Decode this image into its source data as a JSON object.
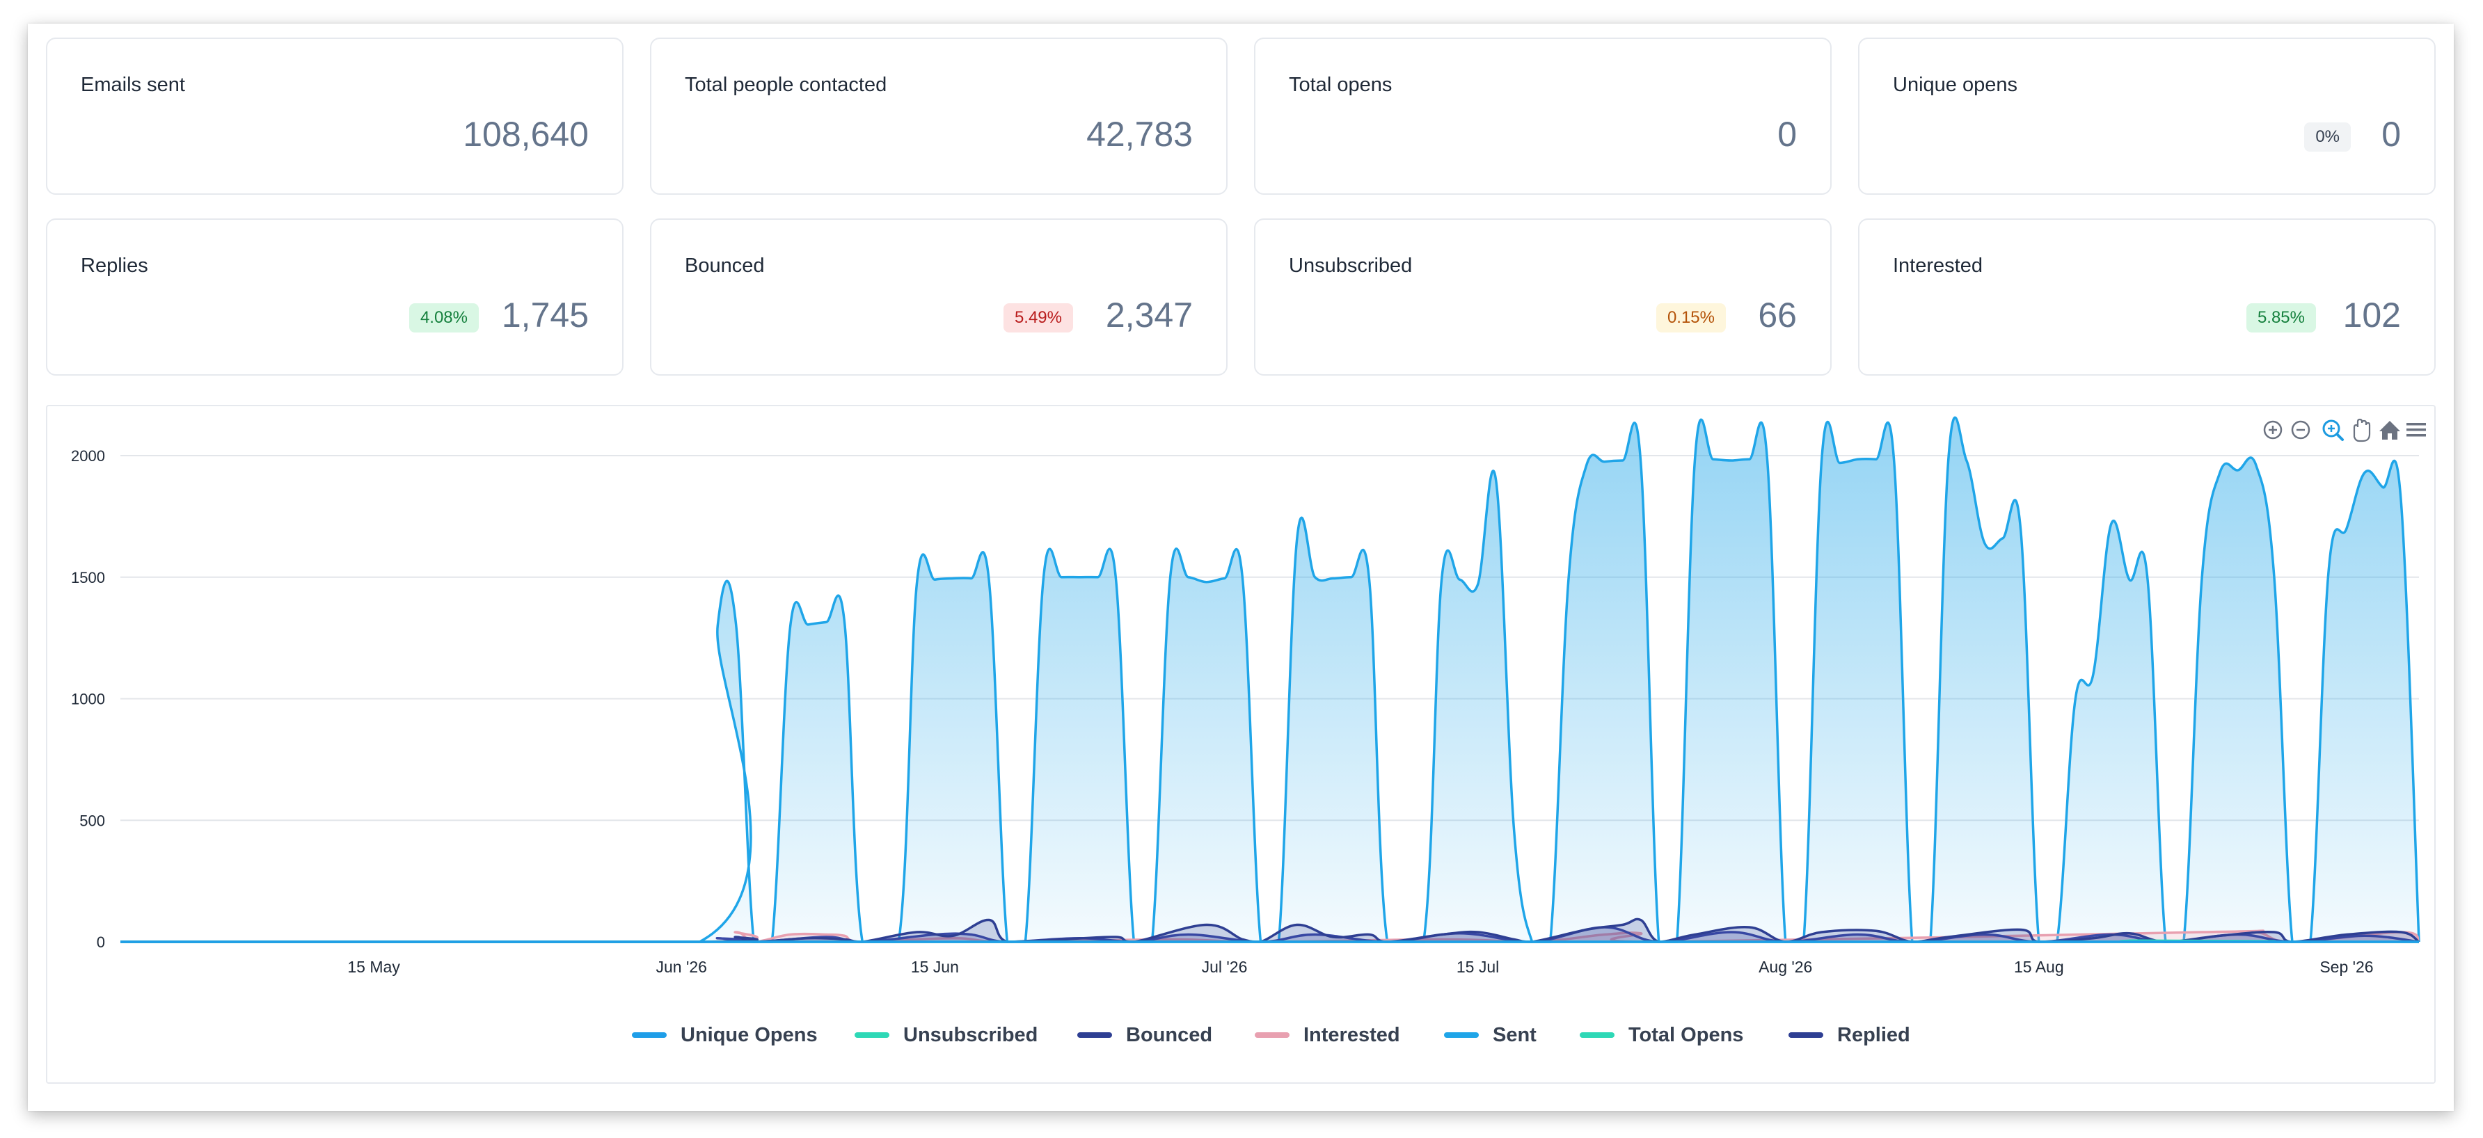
{
  "stats": [
    {
      "title": "Emails sent",
      "value": "108,640",
      "badge": null
    },
    {
      "title": "Total people contacted",
      "value": "42,783",
      "badge": null
    },
    {
      "title": "Total opens",
      "value": "0",
      "badge": null
    },
    {
      "title": "Unique opens",
      "value": "0",
      "badge": {
        "text": "0%",
        "bg": "#f1f3f5",
        "fg": "#374151"
      }
    },
    {
      "title": "Replies",
      "value": "1,745",
      "badge": {
        "text": "4.08%",
        "bg": "#d9f7e4",
        "fg": "#15803d"
      }
    },
    {
      "title": "Bounced",
      "value": "2,347",
      "badge": {
        "text": "5.49%",
        "bg": "#fde2e2",
        "fg": "#b91c1c"
      }
    },
    {
      "title": "Unsubscribed",
      "value": "66",
      "badge": {
        "text": "0.15%",
        "bg": "#fef6dc",
        "fg": "#b45309"
      }
    },
    {
      "title": "Interested",
      "value": "102",
      "badge": {
        "text": "5.85%",
        "bg": "#d9f7e4",
        "fg": "#15803d"
      }
    }
  ],
  "toolbar": {
    "icons": [
      "zoom-in-icon",
      "zoom-out-icon",
      "zoom-selection-icon",
      "pan-icon",
      "home-icon",
      "menu-icon"
    ]
  },
  "legend": [
    {
      "name": "Unique Opens",
      "color": "#1f9ee8"
    },
    {
      "name": "Unsubscribed",
      "color": "#2ed8b6"
    },
    {
      "name": "Bounced",
      "color": "#2e3f93"
    },
    {
      "name": "Interested",
      "color": "#e8a0b0"
    },
    {
      "name": "Sent",
      "color": "#1fa5e8"
    },
    {
      "name": "Total Opens",
      "color": "#2ed8b6"
    },
    {
      "name": "Replied",
      "color": "#2e3f93"
    }
  ],
  "chart_data": {
    "type": "area",
    "title": "",
    "xlabel": "",
    "ylabel": "",
    "ylim": [
      0,
      2000
    ],
    "y_ticks": [
      0,
      500,
      1000,
      1500,
      2000
    ],
    "xlim": [
      "2026-05-01",
      "2026-09-05"
    ],
    "x_ticks": [
      {
        "label": "15 May",
        "date": "2026-05-15"
      },
      {
        "label": "Jun '26",
        "date": "2026-06-01"
      },
      {
        "label": "15 Jun",
        "date": "2026-06-15"
      },
      {
        "label": "Jul '26",
        "date": "2026-07-01"
      },
      {
        "label": "15 Jul",
        "date": "2026-07-15"
      },
      {
        "label": "Aug '26",
        "date": "2026-08-01"
      },
      {
        "label": "15 Aug",
        "date": "2026-08-15"
      },
      {
        "label": "Sep '26",
        "date": "2026-09-01"
      }
    ],
    "grid": true,
    "legend_position": "bottom",
    "series": [
      {
        "name": "Sent",
        "color": "#1fa5e8",
        "points": [
          [
            "2026-05-01",
            0
          ],
          [
            "2026-06-02",
            0
          ],
          [
            "2026-06-03",
            1300
          ],
          [
            "2026-06-04",
            1315
          ],
          [
            "2026-06-05",
            0
          ],
          [
            "2026-06-06",
            0
          ],
          [
            "2026-06-07",
            1290
          ],
          [
            "2026-06-08",
            1305
          ],
          [
            "2026-06-09",
            1315
          ],
          [
            "2026-06-10",
            1320
          ],
          [
            "2026-06-11",
            0
          ],
          [
            "2026-06-13",
            0
          ],
          [
            "2026-06-14",
            1470
          ],
          [
            "2026-06-15",
            1490
          ],
          [
            "2026-06-16",
            1495
          ],
          [
            "2026-06-17",
            1495
          ],
          [
            "2026-06-18",
            1480
          ],
          [
            "2026-06-19",
            0
          ],
          [
            "2026-06-20",
            0
          ],
          [
            "2026-06-21",
            1495
          ],
          [
            "2026-06-22",
            1500
          ],
          [
            "2026-06-23",
            1500
          ],
          [
            "2026-06-24",
            1500
          ],
          [
            "2026-06-25",
            1495
          ],
          [
            "2026-06-26",
            0
          ],
          [
            "2026-06-27",
            0
          ],
          [
            "2026-06-28",
            1495
          ],
          [
            "2026-06-29",
            1500
          ],
          [
            "2026-06-30",
            1480
          ],
          [
            "2026-07-01",
            1495
          ],
          [
            "2026-07-02",
            1495
          ],
          [
            "2026-07-03",
            0
          ],
          [
            "2026-07-04",
            0
          ],
          [
            "2026-07-05",
            1650
          ],
          [
            "2026-07-06",
            1500
          ],
          [
            "2026-07-07",
            1495
          ],
          [
            "2026-07-08",
            1500
          ],
          [
            "2026-07-09",
            1490
          ],
          [
            "2026-07-10",
            0
          ],
          [
            "2026-07-12",
            0
          ],
          [
            "2026-07-13",
            1490
          ],
          [
            "2026-07-14",
            1490
          ],
          [
            "2026-07-15",
            1470
          ],
          [
            "2026-07-16",
            1900
          ],
          [
            "2026-07-17",
            460
          ],
          [
            "2026-07-18",
            0
          ],
          [
            "2026-07-19",
            0
          ],
          [
            "2026-07-20",
            1480
          ],
          [
            "2026-07-21",
            1960
          ],
          [
            "2026-07-22",
            1975
          ],
          [
            "2026-07-23",
            1980
          ],
          [
            "2026-07-24",
            1975
          ],
          [
            "2026-07-25",
            0
          ],
          [
            "2026-07-26",
            0
          ],
          [
            "2026-07-27",
            1990
          ],
          [
            "2026-07-28",
            1985
          ],
          [
            "2026-07-29",
            1980
          ],
          [
            "2026-07-30",
            1985
          ],
          [
            "2026-07-31",
            1975
          ],
          [
            "2026-08-01",
            0
          ],
          [
            "2026-08-02",
            0
          ],
          [
            "2026-08-03",
            1985
          ],
          [
            "2026-08-04",
            1970
          ],
          [
            "2026-08-05",
            1985
          ],
          [
            "2026-08-06",
            1985
          ],
          [
            "2026-08-07",
            1975
          ],
          [
            "2026-08-08",
            0
          ],
          [
            "2026-08-09",
            0
          ],
          [
            "2026-08-10",
            1985
          ],
          [
            "2026-08-11",
            1980
          ],
          [
            "2026-08-12",
            1640
          ],
          [
            "2026-08-13",
            1660
          ],
          [
            "2026-08-14",
            1690
          ],
          [
            "2026-08-15",
            0
          ],
          [
            "2026-08-16",
            0
          ],
          [
            "2026-08-17",
            990
          ],
          [
            "2026-08-18",
            1100
          ],
          [
            "2026-08-19",
            1720
          ],
          [
            "2026-08-20",
            1490
          ],
          [
            "2026-08-21",
            1495
          ],
          [
            "2026-08-22",
            0
          ],
          [
            "2026-08-23",
            0
          ],
          [
            "2026-08-24",
            1490
          ],
          [
            "2026-08-25",
            1930
          ],
          [
            "2026-08-26",
            1940
          ],
          [
            "2026-08-27",
            1960
          ],
          [
            "2026-08-28",
            1500
          ],
          [
            "2026-08-29",
            0
          ],
          [
            "2026-08-30",
            0
          ],
          [
            "2026-08-31",
            1520
          ],
          [
            "2026-09-01",
            1700
          ],
          [
            "2026-09-02",
            1930
          ],
          [
            "2026-09-03",
            1870
          ],
          [
            "2026-09-04",
            1820
          ],
          [
            "2026-09-05",
            0
          ]
        ]
      },
      {
        "name": "Replied",
        "color": "#2e3f93",
        "points": [
          [
            "2026-05-01",
            0
          ],
          [
            "2026-06-02",
            0
          ],
          [
            "2026-06-04",
            20
          ],
          [
            "2026-06-05",
            0
          ],
          [
            "2026-06-08",
            15
          ],
          [
            "2026-06-10",
            10
          ],
          [
            "2026-06-11",
            0
          ],
          [
            "2026-06-14",
            40
          ],
          [
            "2026-06-16",
            25
          ],
          [
            "2026-06-18",
            90
          ],
          [
            "2026-06-19",
            0
          ],
          [
            "2026-06-22",
            10
          ],
          [
            "2026-06-25",
            20
          ],
          [
            "2026-06-26",
            0
          ],
          [
            "2026-06-30",
            70
          ],
          [
            "2026-07-02",
            10
          ],
          [
            "2026-07-03",
            0
          ],
          [
            "2026-07-05",
            70
          ],
          [
            "2026-07-07",
            20
          ],
          [
            "2026-07-09",
            30
          ],
          [
            "2026-07-10",
            0
          ],
          [
            "2026-07-13",
            30
          ],
          [
            "2026-07-15",
            40
          ],
          [
            "2026-07-17",
            10
          ],
          [
            "2026-07-18",
            0
          ],
          [
            "2026-07-21",
            50
          ],
          [
            "2026-07-23",
            70
          ],
          [
            "2026-07-24",
            90
          ],
          [
            "2026-07-25",
            0
          ],
          [
            "2026-07-27",
            30
          ],
          [
            "2026-07-30",
            60
          ],
          [
            "2026-08-01",
            0
          ],
          [
            "2026-08-03",
            40
          ],
          [
            "2026-08-06",
            45
          ],
          [
            "2026-08-08",
            0
          ],
          [
            "2026-08-10",
            20
          ],
          [
            "2026-08-14",
            50
          ],
          [
            "2026-08-15",
            0
          ],
          [
            "2026-08-18",
            15
          ],
          [
            "2026-08-20",
            35
          ],
          [
            "2026-08-22",
            0
          ],
          [
            "2026-08-25",
            25
          ],
          [
            "2026-08-28",
            40
          ],
          [
            "2026-08-29",
            0
          ],
          [
            "2026-09-01",
            30
          ],
          [
            "2026-09-04",
            40
          ],
          [
            "2026-09-05",
            0
          ]
        ]
      },
      {
        "name": "Bounced",
        "color": "#3a4aa8",
        "points": [
          [
            "2026-05-01",
            0
          ],
          [
            "2026-06-02",
            0
          ],
          [
            "2026-06-03",
            15
          ],
          [
            "2026-06-05",
            0
          ],
          [
            "2026-06-09",
            20
          ],
          [
            "2026-06-11",
            0
          ],
          [
            "2026-06-15",
            30
          ],
          [
            "2026-06-17",
            30
          ],
          [
            "2026-06-19",
            0
          ],
          [
            "2026-06-23",
            15
          ],
          [
            "2026-06-26",
            0
          ],
          [
            "2026-06-29",
            30
          ],
          [
            "2026-07-03",
            0
          ],
          [
            "2026-07-06",
            30
          ],
          [
            "2026-07-10",
            0
          ],
          [
            "2026-07-14",
            35
          ],
          [
            "2026-07-18",
            0
          ],
          [
            "2026-07-22",
            60
          ],
          [
            "2026-07-25",
            0
          ],
          [
            "2026-07-29",
            40
          ],
          [
            "2026-08-01",
            0
          ],
          [
            "2026-08-05",
            30
          ],
          [
            "2026-08-08",
            0
          ],
          [
            "2026-08-12",
            30
          ],
          [
            "2026-08-15",
            0
          ],
          [
            "2026-08-19",
            30
          ],
          [
            "2026-08-22",
            0
          ],
          [
            "2026-08-26",
            30
          ],
          [
            "2026-08-29",
            0
          ],
          [
            "2026-09-02",
            25
          ],
          [
            "2026-09-05",
            0
          ]
        ]
      },
      {
        "name": "Interested",
        "color": "#e8a0b0",
        "points": [
          [
            "2026-05-01",
            0
          ],
          [
            "2026-06-02",
            0
          ],
          [
            "2026-06-04",
            40
          ],
          [
            "2026-06-05",
            0
          ],
          [
            "2026-06-07",
            30
          ],
          [
            "2026-06-09",
            30
          ],
          [
            "2026-06-10",
            25
          ],
          [
            "2026-06-11",
            0
          ],
          [
            "2026-06-16",
            15
          ],
          [
            "2026-06-19",
            0
          ],
          [
            "2026-06-28",
            10
          ],
          [
            "2026-07-03",
            0
          ],
          [
            "2026-07-13",
            10
          ],
          [
            "2026-07-18",
            0
          ],
          [
            "2026-07-22",
            30
          ],
          [
            "2026-07-24",
            35
          ],
          [
            "2026-07-25",
            0
          ],
          [
            "2026-08-24",
            40
          ],
          [
            "2026-08-27",
            40
          ],
          [
            "2026-08-29",
            0
          ],
          [
            "2026-09-04",
            40
          ],
          [
            "2026-09-05",
            0
          ]
        ]
      },
      {
        "name": "Unique Opens",
        "color": "#1f9ee8",
        "points": [
          [
            "2026-05-01",
            0
          ],
          [
            "2026-09-05",
            0
          ]
        ]
      },
      {
        "name": "Total Opens",
        "color": "#2ed8b6",
        "points": [
          [
            "2026-05-01",
            0
          ],
          [
            "2026-09-05",
            0
          ]
        ]
      },
      {
        "name": "Unsubscribed",
        "color": "#2ed8b6",
        "points": [
          [
            "2026-05-01",
            0
          ],
          [
            "2026-08-19",
            0
          ],
          [
            "2026-08-20",
            5
          ],
          [
            "2026-08-21",
            0
          ],
          [
            "2026-09-05",
            0
          ]
        ]
      }
    ]
  }
}
